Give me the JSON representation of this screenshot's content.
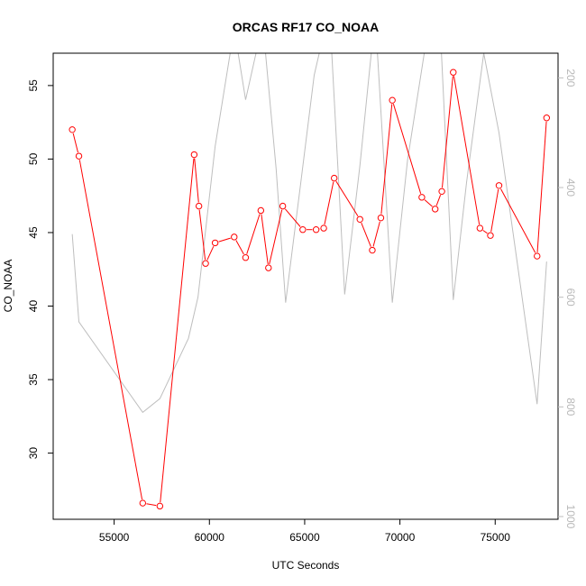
{
  "chart_data": {
    "type": "line",
    "title": "ORCAS RF17 CO_NOAA",
    "xlabel": "UTC Seconds",
    "ylabel": "CO_NOAA",
    "xlim": [
      51800,
      78300
    ],
    "ylim": [
      25.5,
      57.2
    ],
    "x_ticks": [
      "55000",
      "60000",
      "65000",
      "70000",
      "75000"
    ],
    "y_ticks": [
      "30",
      "35",
      "40",
      "45",
      "50",
      "55"
    ],
    "secondary_axis": {
      "position": "right",
      "reversed": true,
      "ylim": [
        1005,
        155
      ],
      "ticks": [
        "200",
        "400",
        "600",
        "800",
        "1000"
      ],
      "color": "#bebebe"
    },
    "series": [
      {
        "color": "#ff0000",
        "marker": "open-circle",
        "x": [
          52800,
          53150,
          56500,
          57400,
          59200,
          59450,
          59800,
          60300,
          61300,
          61900,
          62700,
          63100,
          63850,
          64900,
          65600,
          66000,
          66550,
          67900,
          68550,
          69000,
          69600,
          71150,
          71850,
          72200,
          72800,
          74200,
          74750,
          75200,
          77200,
          77700
        ],
        "y": [
          52.0,
          50.2,
          26.6,
          26.4,
          50.3,
          46.8,
          42.9,
          44.3,
          44.7,
          43.3,
          46.5,
          42.6,
          46.8,
          45.2,
          45.2,
          45.3,
          48.7,
          45.9,
          43.8,
          46.0,
          54.0,
          47.4,
          46.6,
          47.8,
          55.9,
          45.3,
          44.8,
          48.2,
          43.4,
          52.8
        ]
      },
      {
        "color": "#bebebe",
        "axis": "right",
        "x": [
          52800,
          53150,
          56500,
          57400,
          58900,
          59400,
          60300,
          61300,
          61900,
          62800,
          63500,
          64000,
          64800,
          65500,
          66300,
          67100,
          67900,
          68700,
          69600,
          70400,
          71300,
          72000,
          72800,
          73500,
          74400,
          75200,
          77200,
          77700
        ],
        "y": [
          485,
          645,
          810,
          785,
          675,
          600,
          325,
          110,
          240,
          100,
          365,
          610,
          390,
          195,
          75,
          595,
          360,
          85,
          610,
          350,
          150,
          25,
          605,
          390,
          155,
          300,
          795,
          535
        ]
      }
    ]
  }
}
